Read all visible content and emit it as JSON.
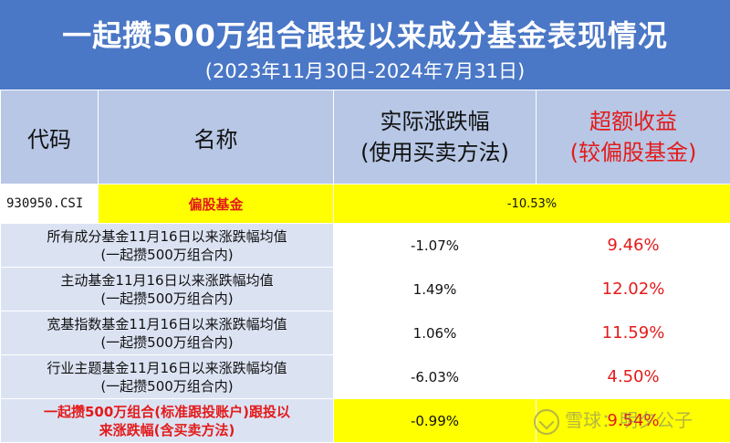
{
  "title": "一起攒500万组合跟投以来成分基金表现情况",
  "subtitle": "(2023年11月30日-2024年7月31日)",
  "headers": {
    "code": "代码",
    "name": "名称",
    "actual_line1": "实际涨跌幅",
    "actual_line2": "(使用买卖方法)",
    "excess_line1": "超额收益",
    "excess_line2": "(较偏股基金)"
  },
  "benchmark": {
    "code": "930950.CSI",
    "name": "偏股基金",
    "value": "-10.53%"
  },
  "rows": [
    {
      "line1": "所有成分基金11月16日以来涨跌幅均值",
      "line2": "(一起攒500万组合内)",
      "actual": "-1.07%",
      "excess": "9.46%"
    },
    {
      "line1": "主动基金11月16日以来涨跌幅均值",
      "line2": "(一起攒500万组合内)",
      "actual": "1.49%",
      "excess": "12.02%"
    },
    {
      "line1": "宽基指数基金11月16日以来涨跌幅均值",
      "line2": "(一起攒500万组合内)",
      "actual": "1.06%",
      "excess": "11.59%"
    },
    {
      "line1": "行业主题基金11月16日以来涨跌幅均值",
      "line2": "(一起攒500万组合内)",
      "actual": "-6.03%",
      "excess": "4.50%"
    }
  ],
  "portfolio": {
    "line1": "一起攒500万组合(标准跟投账户)跟投以",
    "line2": "来涨跌幅(含买卖方法)",
    "actual": "-0.99%",
    "excess": "9.54%"
  },
  "watermark": "雪球：明夕公子",
  "colors": {
    "header_blue": "#4a77c6",
    "header_lavender": "#b7c7e5",
    "row_lavender": "#dbe3f3",
    "highlight": "#ffff00",
    "accent_red": "#e31b1b"
  }
}
